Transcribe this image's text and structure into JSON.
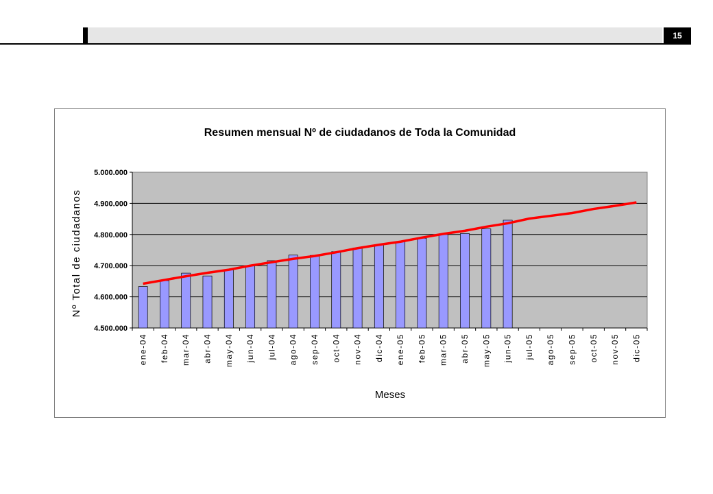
{
  "page": {
    "number": "15"
  },
  "chart_data": {
    "type": "bar",
    "title": "Resumen mensual Nº de ciudadanos de Toda la Comunidad",
    "xlabel": "Meses",
    "ylabel": "Nº Total de ciudadanos",
    "ylim": [
      4500000,
      5000000
    ],
    "yticks": [
      4500000,
      4600000,
      4700000,
      4800000,
      4900000,
      5000000
    ],
    "ytick_labels": [
      "4.500.000",
      "4.600.000",
      "4.700.000",
      "4.800.000",
      "4.900.000",
      "5.000.000"
    ],
    "categories": [
      "ene-04",
      "feb-04",
      "mar-04",
      "abr-04",
      "may-04",
      "jun-04",
      "jul-04",
      "ago-04",
      "sep-04",
      "oct-04",
      "nov-04",
      "dic-04",
      "ene-05",
      "feb-05",
      "mar-05",
      "abr-05",
      "may-05",
      "jun-05",
      "jul-05",
      "ago-05",
      "sep-05",
      "oct-05",
      "nov-05",
      "dic-05"
    ],
    "series": [
      {
        "type": "bar",
        "values": [
          4633000,
          4652000,
          4676000,
          4667000,
          4686000,
          4700000,
          4716000,
          4734000,
          4733000,
          4745000,
          4757000,
          4767000,
          4777000,
          4788000,
          4800000,
          4803000,
          4818000,
          4846000,
          null,
          null,
          null,
          null,
          null,
          null
        ]
      },
      {
        "type": "line",
        "values": [
          4642000,
          4654000,
          4666000,
          4677000,
          4687000,
          4700000,
          4711000,
          4722000,
          4731000,
          4743000,
          4756000,
          4767000,
          4777000,
          4790000,
          4802000,
          4812000,
          4825000,
          4836000,
          4851000,
          4860000,
          4869000,
          4882000,
          4892000,
          4903000
        ]
      }
    ],
    "colors": {
      "bar": "#9999ff",
      "line": "#ff0000",
      "plot_bg": "#c0c0c0"
    },
    "grid": true,
    "legend": "none"
  }
}
